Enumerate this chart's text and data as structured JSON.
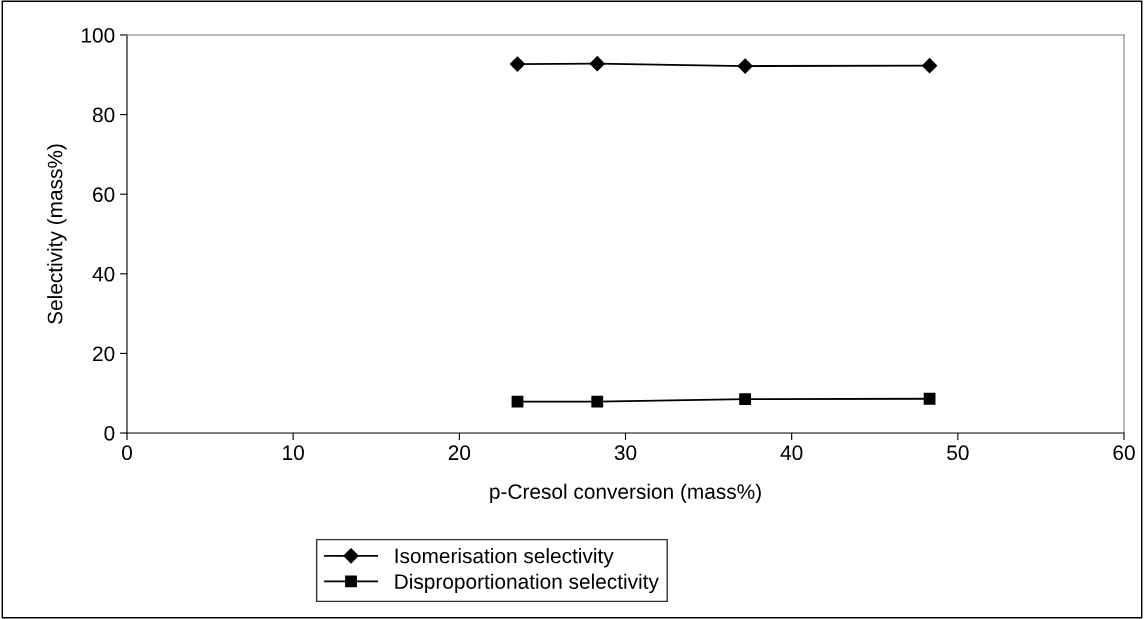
{
  "chart_data": {
    "type": "line",
    "xlabel": "p-Cresol conversion (mass%)",
    "ylabel": "Selectivity (mass%)",
    "xlim": [
      0,
      60
    ],
    "xticks": [
      0,
      10,
      20,
      30,
      40,
      50,
      60
    ],
    "ylim": [
      0,
      100
    ],
    "yticks": [
      0,
      20,
      40,
      60,
      80,
      100
    ],
    "grid": false,
    "legend": "bottom",
    "line_style": "solid",
    "series": [
      {
        "name": "Isomerisation selectivity",
        "color": "#000000",
        "marker": "diamond",
        "x": [
          23.5,
          28.3,
          37.2,
          48.3
        ],
        "values": [
          92.7,
          92.8,
          92.2,
          92.3
        ]
      },
      {
        "name": "Disproportionation selectivity",
        "color": "#000000",
        "marker": "square",
        "x": [
          23.5,
          28.3,
          37.2,
          48.3
        ],
        "values": [
          7.9,
          7.9,
          8.5,
          8.6
        ]
      }
    ]
  }
}
